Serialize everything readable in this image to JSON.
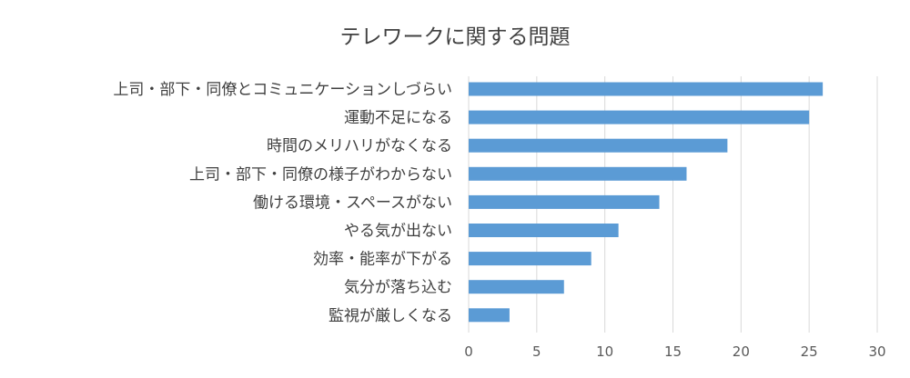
{
  "chart_data": {
    "type": "bar",
    "orientation": "horizontal",
    "title": "テレワークに関する問題",
    "categories": [
      "上司・部下・同僚とコミュニケーションしづらい",
      "運動不足になる",
      "時間のメリハリがなくなる",
      "上司・部下・同僚の様子がわからない",
      "働ける環境・スペースがない",
      "やる気が出ない",
      "効率・能率が下がる",
      "気分が落ち込む",
      "監視が厳しくなる"
    ],
    "values": [
      26,
      25,
      19,
      16,
      14,
      11,
      9,
      7,
      3
    ],
    "xlim": [
      0,
      30
    ],
    "xticks": [
      0,
      5,
      10,
      15,
      20,
      25,
      30
    ],
    "grid": true,
    "legend": "none",
    "colors": {
      "bar": "#5b9bd5",
      "grid": "#d9d9d9",
      "text": "#404040"
    }
  }
}
